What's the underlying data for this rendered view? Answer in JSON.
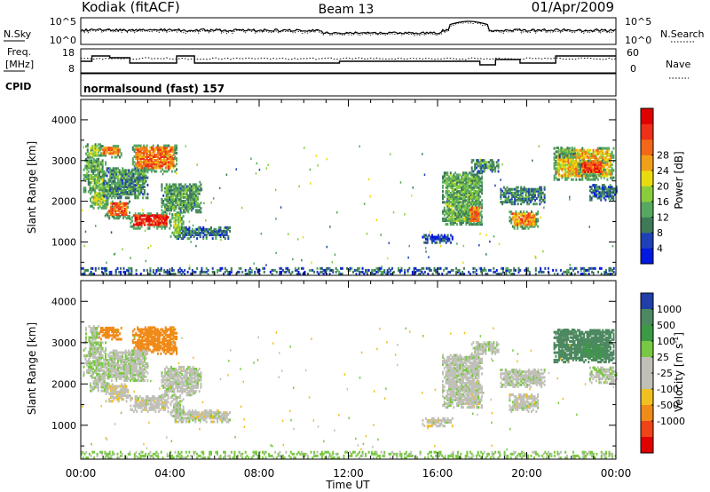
{
  "header": {
    "station": "Kodiak (fitACF)",
    "beam": "Beam 13",
    "date": "01/Apr/2009"
  },
  "noise_panel": {
    "left_label": "N.Sky",
    "right_label": "N.Search",
    "left_ticks": [
      "10^5",
      "10^0"
    ],
    "right_ticks": [
      "10^5",
      "10^0"
    ]
  },
  "freq_panel": {
    "left_label_1": "Freq.",
    "left_label_2": "[MHz]",
    "right_label": "Nave",
    "left_ticks": [
      "18",
      "8"
    ],
    "right_ticks": [
      "60",
      "0"
    ],
    "steps": [
      [
        0,
        13
      ],
      [
        0.5,
        16
      ],
      [
        1.3,
        15
      ],
      [
        2.2,
        12
      ],
      [
        4.3,
        16
      ],
      [
        5.1,
        12
      ],
      [
        10.8,
        12
      ],
      [
        11.6,
        13
      ],
      [
        16.2,
        13
      ],
      [
        17.9,
        11
      ],
      [
        18.6,
        14
      ],
      [
        19.7,
        12
      ],
      [
        21.3,
        16
      ],
      [
        24,
        16
      ]
    ]
  },
  "cpid": {
    "label": "CPID",
    "value": "normalsound (fast) 157"
  },
  "power_panel": {
    "ylabel": "Slant Range [km]",
    "yticks": [
      "1000",
      "2000",
      "3000",
      "4000"
    ],
    "colorbar_label": "Power [dB]",
    "colorbar_ticks": [
      "4",
      "8",
      "12",
      "16",
      "20",
      "24",
      "28"
    ],
    "colors": [
      "#0018e0",
      "#2040b8",
      "#3e7a58",
      "#56a860",
      "#8acd3c",
      "#e8dc10",
      "#f0a018",
      "#f26818",
      "#ee3018",
      "#e00000"
    ]
  },
  "velocity_panel": {
    "ylabel": "Slant Range [km]",
    "yticks": [
      "1000",
      "2000",
      "3000",
      "4000"
    ],
    "colorbar_label": "Velocity [m s",
    "colorbar_unit_exp": "-1",
    "colorbar_unit_close": "]",
    "colorbar_ticks": [
      "1000",
      "500",
      "100",
      "25",
      "-25",
      "-100",
      "-500",
      "-1000"
    ],
    "colors": [
      "#2040a8",
      "#4c8860",
      "#3c9a44",
      "#78c842",
      "#c0c0b8",
      "#c0c0b8",
      "#f0c020",
      "#f08a18",
      "#ee4418",
      "#e00000"
    ]
  },
  "xaxis": {
    "label": "Time UT",
    "ticks": [
      "00:00",
      "04:00",
      "08:00",
      "12:00",
      "16:00",
      "20:00",
      "00:00"
    ]
  },
  "chart_data": {
    "type": "heatmap",
    "title": "Kodiak (fitACF) Beam 13 01/Apr/2009",
    "xlabel": "Time UT",
    "ylabel": "Slant Range [km]",
    "xlim": [
      0,
      24
    ],
    "ylim": [
      180,
      4500
    ],
    "regions": [
      {
        "t0": 0.1,
        "t1": 1.1,
        "r0": 2200,
        "r1": 3000,
        "p": 11,
        "v": 15
      },
      {
        "t0": 0.2,
        "t1": 0.9,
        "r0": 3000,
        "r1": 3400,
        "p": 13,
        "v": 20
      },
      {
        "t0": 0.8,
        "t1": 1.8,
        "r0": 3050,
        "r1": 3350,
        "p": 21,
        "v": -250
      },
      {
        "t0": 1.1,
        "t1": 2.2,
        "r0": 1550,
        "r1": 2000,
        "p": 23,
        "v": -5
      },
      {
        "t0": 0.4,
        "t1": 1.2,
        "r0": 1800,
        "r1": 2250,
        "p": 14,
        "v": 10
      },
      {
        "t0": 2.3,
        "t1": 4.3,
        "r0": 2700,
        "r1": 3350,
        "p": 22,
        "v": -200
      },
      {
        "t0": 2.2,
        "t1": 4.0,
        "r0": 1300,
        "r1": 1700,
        "p": 27,
        "v": 0
      },
      {
        "t0": 1.0,
        "t1": 3.0,
        "r0": 2050,
        "r1": 2800,
        "p": 9,
        "v": 10
      },
      {
        "t0": 3.6,
        "t1": 5.4,
        "r0": 1700,
        "r1": 2400,
        "p": 10,
        "v": 5
      },
      {
        "t0": 4.2,
        "t1": 6.7,
        "r0": 1050,
        "r1": 1350,
        "p": 7,
        "v": 0
      },
      {
        "t0": 4.0,
        "t1": 4.6,
        "r0": 1100,
        "r1": 1700,
        "p": 14,
        "v": 10
      },
      {
        "t0": 16.2,
        "t1": 18.0,
        "r0": 1400,
        "r1": 2700,
        "p": 11,
        "v": 5
      },
      {
        "t0": 17.3,
        "t1": 18.0,
        "r0": 1400,
        "r1": 1900,
        "p": 22,
        "v": 0
      },
      {
        "t0": 15.3,
        "t1": 16.7,
        "r0": 950,
        "r1": 1150,
        "p": 5,
        "v": 0
      },
      {
        "t0": 17.5,
        "t1": 18.7,
        "r0": 2700,
        "r1": 3000,
        "p": 9,
        "v": 15
      },
      {
        "t0": 19.2,
        "t1": 20.5,
        "r0": 1300,
        "r1": 1750,
        "p": 21,
        "v": 0
      },
      {
        "t0": 18.8,
        "t1": 20.8,
        "r0": 1900,
        "r1": 2350,
        "p": 8,
        "v": 5
      },
      {
        "t0": 21.2,
        "t1": 23.9,
        "r0": 2500,
        "r1": 3300,
        "p": 18,
        "v": 350
      },
      {
        "t0": 22.3,
        "t1": 23.5,
        "r0": 2600,
        "r1": 3000,
        "p": 25,
        "v": 300
      },
      {
        "t0": 21.3,
        "t1": 22.2,
        "r0": 3050,
        "r1": 3300,
        "p": 9,
        "v": 600
      },
      {
        "t0": 22.8,
        "t1": 24.0,
        "r0": 2000,
        "r1": 2400,
        "p": 6,
        "v": 15
      },
      {
        "t0": 0.0,
        "t1": 24.0,
        "r0": 180,
        "r1": 360,
        "p": 6,
        "v": 40
      }
    ]
  }
}
